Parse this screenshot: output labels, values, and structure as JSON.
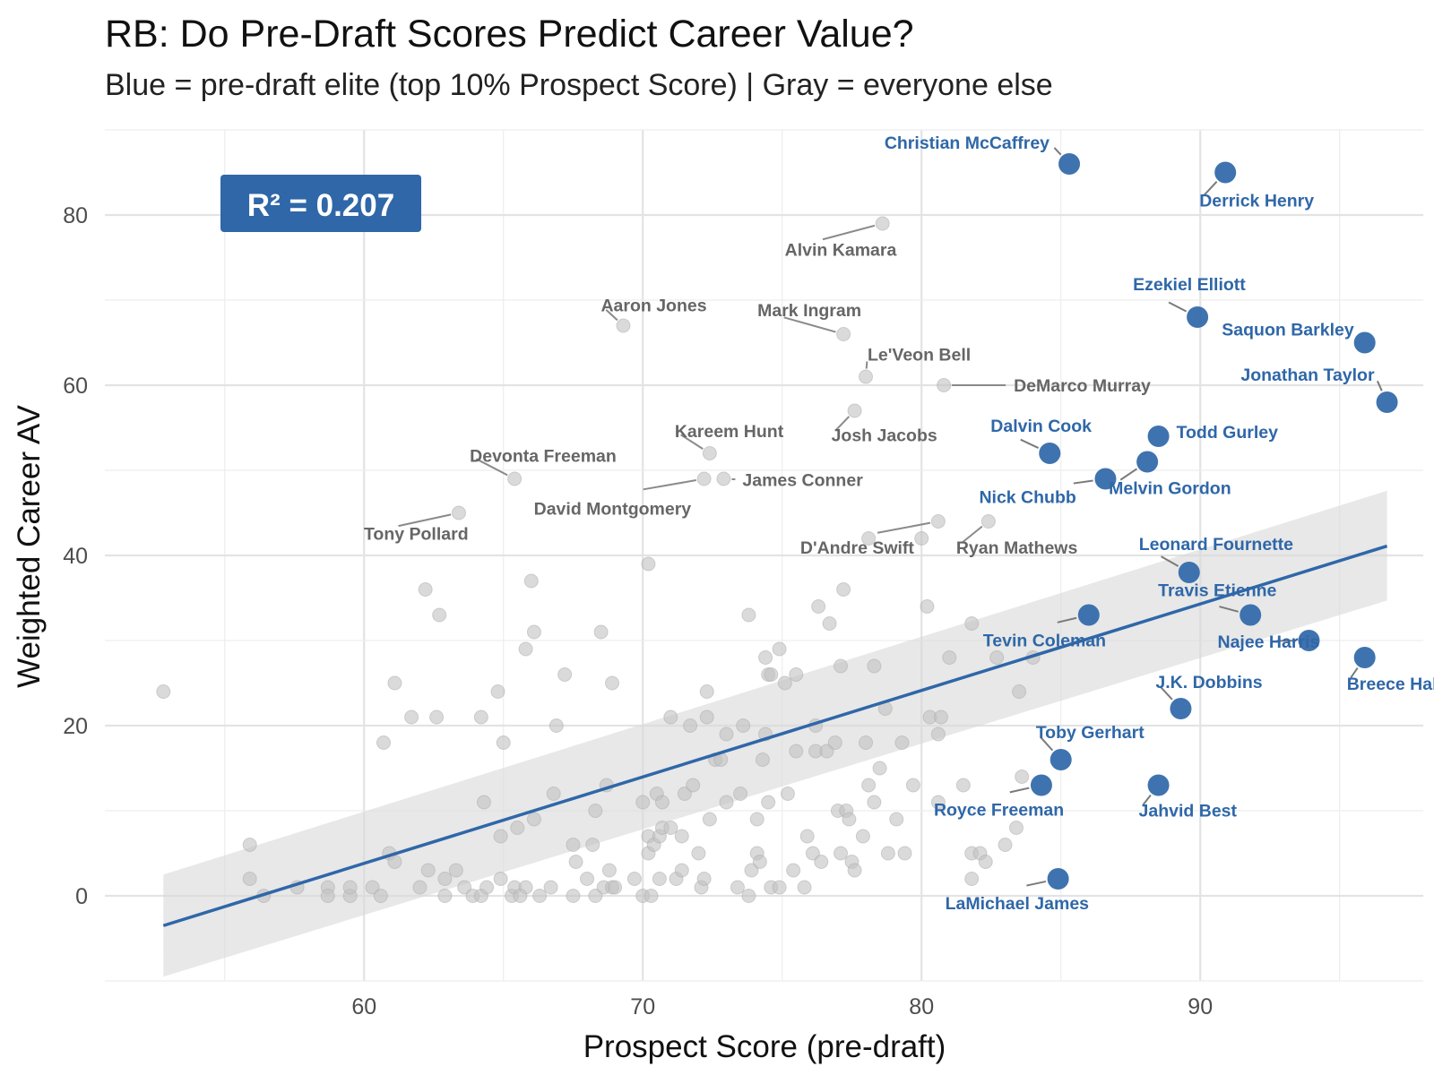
{
  "title": "RB: Do Pre-Draft Scores Predict Career Value?",
  "subtitle": "Blue = pre-draft elite (top 10% Prospect Score) | Gray = everyone else",
  "chart_data": {
    "type": "scatter",
    "title": "RB: Do Pre-Draft Scores Predict Career Value?",
    "subtitle": "Blue = pre-draft elite (top 10% Prospect Score) | Gray = everyone else",
    "xlabel": "Prospect Score (pre-draft)",
    "ylabel": "Weighted Career AV",
    "xlim": [
      50.7,
      98.0
    ],
    "ylim": [
      -10.0,
      90.0
    ],
    "x_ticks": [
      60,
      70,
      80,
      90
    ],
    "y_ticks": [
      0,
      20,
      40,
      60,
      80
    ],
    "grid": true,
    "annotation": {
      "text": "R² = 0.207"
    },
    "colors": {
      "elite": "#2f67a8",
      "other": "#c2c2c2",
      "other_label": "#666666",
      "band": "#d9d9d9",
      "line": "#2f67a8"
    },
    "trend": {
      "x": [
        52.8,
        96.7
      ],
      "y": [
        -3.5,
        41.1
      ],
      "band_lower": [
        -9.5,
        34.7
      ],
      "band_upper": [
        2.5,
        47.6
      ]
    },
    "elite": [
      {
        "name": "Christian McCaffrey",
        "x": 85.3,
        "y": 86
      },
      {
        "name": "Derrick Henry",
        "x": 90.9,
        "y": 85
      },
      {
        "name": "Ezekiel Elliott",
        "x": 89.9,
        "y": 68
      },
      {
        "name": "Saquon Barkley",
        "x": 95.9,
        "y": 65
      },
      {
        "name": "Jonathan Taylor",
        "x": 96.7,
        "y": 58
      },
      {
        "name": "Todd Gurley",
        "x": 88.5,
        "y": 54
      },
      {
        "name": "Dalvin Cook",
        "x": 84.6,
        "y": 52
      },
      {
        "name": "Melvin Gordon",
        "x": 88.1,
        "y": 51
      },
      {
        "name": "Nick Chubb",
        "x": 86.6,
        "y": 49
      },
      {
        "name": "Leonard Fournette",
        "x": 89.6,
        "y": 38
      },
      {
        "name": "Travis Etienne",
        "x": 91.8,
        "y": 33
      },
      {
        "name": "Tevin Coleman",
        "x": 86.0,
        "y": 33
      },
      {
        "name": "Najee Harris",
        "x": 93.9,
        "y": 30
      },
      {
        "name": "Breece Hall",
        "x": 95.9,
        "y": 28
      },
      {
        "name": "J.K. Dobbins",
        "x": 89.3,
        "y": 22
      },
      {
        "name": "Toby Gerhart",
        "x": 85.0,
        "y": 16
      },
      {
        "name": "Royce Freeman",
        "x": 84.3,
        "y": 13
      },
      {
        "name": "Jahvid Best",
        "x": 88.5,
        "y": 13
      },
      {
        "name": "LaMichael James",
        "x": 84.9,
        "y": 2
      }
    ],
    "labeled_others": [
      {
        "name": "Alvin Kamara",
        "x": 78.6,
        "y": 79
      },
      {
        "name": "Aaron Jones",
        "x": 69.3,
        "y": 67
      },
      {
        "name": "Mark Ingram",
        "x": 77.2,
        "y": 66
      },
      {
        "name": "Le'Veon Bell",
        "x": 78.0,
        "y": 61
      },
      {
        "name": "DeMarco Murray",
        "x": 80.8,
        "y": 60
      },
      {
        "name": "Josh Jacobs",
        "x": 77.6,
        "y": 57
      },
      {
        "name": "Kareem Hunt",
        "x": 72.4,
        "y": 52
      },
      {
        "name": "Devonta Freeman",
        "x": 65.4,
        "y": 49
      },
      {
        "name": "David Montgomery",
        "x": 72.2,
        "y": 49
      },
      {
        "name": "James Conner",
        "x": 72.9,
        "y": 49
      },
      {
        "name": "Tony Pollard",
        "x": 63.4,
        "y": 45
      },
      {
        "name": "D'Andre Swift",
        "x": 80.6,
        "y": 44
      },
      {
        "name": "Ryan Mathews",
        "x": 82.4,
        "y": 44
      }
    ],
    "others": [
      [
        52.8,
        24
      ],
      [
        55.9,
        6
      ],
      [
        55.9,
        2
      ],
      [
        56.4,
        0
      ],
      [
        57.6,
        1
      ],
      [
        58.7,
        1
      ],
      [
        58.7,
        0
      ],
      [
        59.5,
        0
      ],
      [
        59.5,
        1
      ],
      [
        60.3,
        1
      ],
      [
        60.6,
        0
      ],
      [
        60.7,
        18
      ],
      [
        60.9,
        5
      ],
      [
        61.1,
        4
      ],
      [
        61.1,
        25
      ],
      [
        61.7,
        21
      ],
      [
        62.0,
        1
      ],
      [
        62.2,
        36
      ],
      [
        62.3,
        3
      ],
      [
        62.6,
        21
      ],
      [
        62.7,
        33
      ],
      [
        62.9,
        2
      ],
      [
        62.9,
        0
      ],
      [
        63.3,
        3
      ],
      [
        63.6,
        1
      ],
      [
        63.9,
        0
      ],
      [
        64.2,
        0
      ],
      [
        64.2,
        21
      ],
      [
        64.3,
        11
      ],
      [
        64.4,
        1
      ],
      [
        64.8,
        24
      ],
      [
        64.9,
        7
      ],
      [
        64.9,
        2
      ],
      [
        65.0,
        18
      ],
      [
        65.3,
        0
      ],
      [
        65.4,
        1
      ],
      [
        65.5,
        8
      ],
      [
        65.8,
        1
      ],
      [
        65.6,
        0
      ],
      [
        65.8,
        29
      ],
      [
        66.0,
        37
      ],
      [
        66.1,
        31
      ],
      [
        66.1,
        9
      ],
      [
        66.3,
        0
      ],
      [
        66.7,
        1
      ],
      [
        66.8,
        12
      ],
      [
        66.9,
        20
      ],
      [
        67.2,
        26
      ],
      [
        67.5,
        0
      ],
      [
        67.5,
        6
      ],
      [
        67.6,
        4
      ],
      [
        68.0,
        2
      ],
      [
        68.2,
        6
      ],
      [
        68.3,
        10
      ],
      [
        68.3,
        0
      ],
      [
        68.5,
        31
      ],
      [
        68.6,
        1
      ],
      [
        68.7,
        13
      ],
      [
        68.8,
        3
      ],
      [
        68.9,
        1
      ],
      [
        68.9,
        25
      ],
      [
        69.0,
        1
      ],
      [
        69.7,
        2
      ],
      [
        70.0,
        0
      ],
      [
        70.0,
        11
      ],
      [
        70.2,
        5
      ],
      [
        70.2,
        39
      ],
      [
        70.2,
        7
      ],
      [
        70.3,
        0
      ],
      [
        70.5,
        12
      ],
      [
        70.4,
        6
      ],
      [
        70.6,
        2
      ],
      [
        70.6,
        7
      ],
      [
        70.7,
        8
      ],
      [
        70.7,
        11
      ],
      [
        71.0,
        21
      ],
      [
        71.0,
        8
      ],
      [
        71.2,
        2
      ],
      [
        71.4,
        7
      ],
      [
        71.4,
        3
      ],
      [
        71.5,
        12
      ],
      [
        71.7,
        20
      ],
      [
        71.8,
        13
      ],
      [
        72.0,
        5
      ],
      [
        72.1,
        1
      ],
      [
        72.2,
        2
      ],
      [
        72.3,
        24
      ],
      [
        72.3,
        21
      ],
      [
        72.4,
        9
      ],
      [
        72.6,
        16
      ],
      [
        72.8,
        16
      ],
      [
        73.0,
        19
      ],
      [
        73.0,
        11
      ],
      [
        73.4,
        1
      ],
      [
        73.5,
        12
      ],
      [
        73.6,
        20
      ],
      [
        73.8,
        0
      ],
      [
        73.8,
        33
      ],
      [
        73.9,
        3
      ],
      [
        74.1,
        9
      ],
      [
        74.1,
        5
      ],
      [
        74.2,
        4
      ],
      [
        74.4,
        19
      ],
      [
        74.3,
        16
      ],
      [
        74.4,
        28
      ],
      [
        74.5,
        11
      ],
      [
        74.5,
        26
      ],
      [
        74.6,
        1
      ],
      [
        74.6,
        26
      ],
      [
        74.9,
        1
      ],
      [
        74.9,
        29
      ],
      [
        75.1,
        25
      ],
      [
        75.2,
        12
      ],
      [
        75.4,
        3
      ],
      [
        75.5,
        26
      ],
      [
        75.5,
        17
      ],
      [
        75.8,
        1
      ],
      [
        75.9,
        7
      ],
      [
        76.1,
        5
      ],
      [
        76.2,
        20
      ],
      [
        76.2,
        17
      ],
      [
        76.3,
        34
      ],
      [
        76.4,
        4
      ],
      [
        76.6,
        17
      ],
      [
        76.7,
        32
      ],
      [
        76.9,
        18
      ],
      [
        77.0,
        10
      ],
      [
        77.1,
        27
      ],
      [
        77.1,
        5
      ],
      [
        77.2,
        36
      ],
      [
        77.3,
        10
      ],
      [
        77.4,
        9
      ],
      [
        77.5,
        4
      ],
      [
        77.6,
        3
      ],
      [
        77.9,
        7
      ],
      [
        78.0,
        18
      ],
      [
        78.1,
        13
      ],
      [
        78.1,
        42
      ],
      [
        78.3,
        11
      ],
      [
        78.3,
        27
      ],
      [
        78.5,
        15
      ],
      [
        78.7,
        22
      ],
      [
        78.8,
        5
      ],
      [
        79.1,
        9
      ],
      [
        79.3,
        18
      ],
      [
        79.4,
        5
      ],
      [
        79.7,
        13
      ],
      [
        80.0,
        42
      ],
      [
        80.2,
        34
      ],
      [
        80.3,
        21
      ],
      [
        80.6,
        19
      ],
      [
        80.6,
        11
      ],
      [
        80.7,
        21
      ],
      [
        81.0,
        28
      ],
      [
        81.5,
        13
      ],
      [
        81.8,
        2
      ],
      [
        81.8,
        5
      ],
      [
        81.8,
        32
      ],
      [
        82.1,
        5
      ],
      [
        82.3,
        4
      ],
      [
        82.7,
        28
      ],
      [
        83.0,
        6
      ],
      [
        83.4,
        8
      ],
      [
        83.5,
        24
      ],
      [
        83.6,
        14
      ],
      [
        84.0,
        28
      ]
    ]
  }
}
